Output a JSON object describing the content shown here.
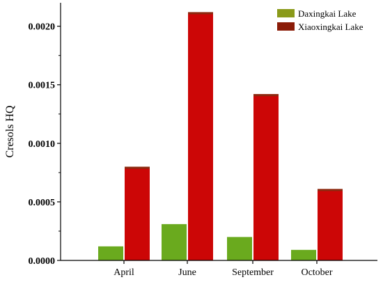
{
  "chart_data": {
    "type": "bar",
    "title": "",
    "xlabel": "",
    "ylabel": "Cresols HQ",
    "ylim": [
      0,
      0.0022
    ],
    "yticks": [
      "0.0000",
      "0.0005",
      "0.0010",
      "0.0015",
      "0.0020"
    ],
    "ytick_values": [
      0,
      0.0005,
      0.001,
      0.0015,
      0.002
    ],
    "categories": [
      "April",
      "June",
      "September",
      "October"
    ],
    "series": [
      {
        "name": "Daxingkai Lake",
        "values": [
          0.00012,
          0.00031,
          0.0002,
          9e-05
        ]
      },
      {
        "name": "Xiaoxingkai Lake",
        "values": [
          0.0008,
          0.00212,
          0.00142,
          0.00061
        ]
      }
    ],
    "grid": false,
    "legend_position": "top-right",
    "colors": {
      "series_1": "#6aaa1e",
      "series_2": "#cc0606",
      "series_1_swatch": "#8a9a1a",
      "series_2_swatch": "#8b1c08",
      "bar_top": "#8b2a10",
      "axis": "#000000"
    }
  }
}
